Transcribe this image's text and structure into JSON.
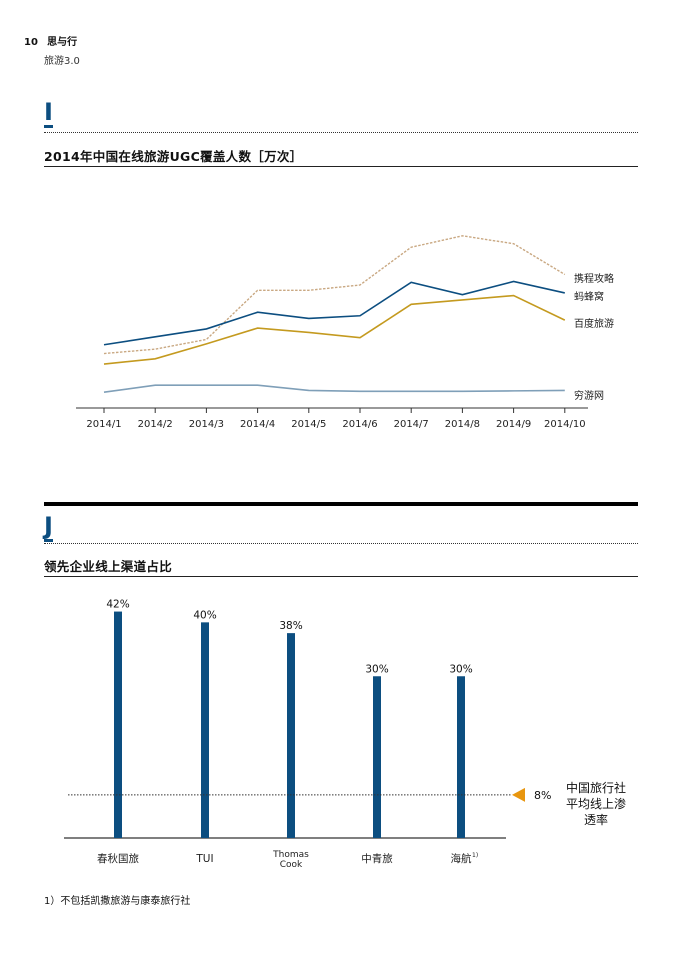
{
  "header": {
    "page_number": "10",
    "publication": "思与行",
    "subtitle": "旅游3.0"
  },
  "section_i": {
    "letter": "I"
  },
  "section_j": {
    "letter": "J"
  },
  "chart_data": [
    {
      "type": "line",
      "title": "2014年中国在线旅游UGC覆盖人数［万次］",
      "categories": [
        "2014/1",
        "2014/2",
        "2014/3",
        "2014/4",
        "2014/5",
        "2014/6",
        "2014/7",
        "2014/8",
        "2014/9",
        "2014/10"
      ],
      "series": [
        {
          "name": "携程攻略",
          "color": "#c9a882",
          "style": "dashed",
          "values": [
            1280,
            1330,
            1440,
            2000,
            2000,
            2060,
            2490,
            2620,
            2530,
            2180
          ]
        },
        {
          "name": "蚂蜂窝",
          "color": "#0c4e80",
          "style": "solid",
          "values": [
            1380,
            1470,
            1560,
            1750,
            1680,
            1710,
            2090,
            1950,
            2100,
            1970
          ]
        },
        {
          "name": "百度旅游",
          "color": "#c49a1f",
          "style": "solid",
          "values": [
            1160,
            1220,
            1390,
            1570,
            1520,
            1460,
            1840,
            1890,
            1940,
            1660
          ]
        },
        {
          "name": "穷游网",
          "color": "#7f9fb8",
          "style": "solid",
          "values": [
            840,
            920,
            920,
            920,
            860,
            850,
            850,
            850,
            855,
            860
          ]
        }
      ],
      "ylim": [
        660,
        2800
      ],
      "grid": false,
      "legend": "right, labels beside line ends"
    },
    {
      "type": "bar",
      "title": "领先企业线上渠道占比",
      "categories": [
        "春秋国旅",
        "TUI",
        "Thomas Cook",
        "中青旅",
        "海航"
      ],
      "values": [
        42,
        40,
        38,
        30,
        30
      ],
      "value_labels": [
        "42%",
        "40%",
        "38%",
        "30%",
        "30%"
      ],
      "category_superscripts": [
        "",
        "",
        "",
        "",
        "1)"
      ],
      "ylim": [
        0,
        46
      ],
      "bar_color": "#0c4e80",
      "reference_line": {
        "value": 8,
        "label": "8%",
        "marker_color": "#e8960f",
        "caption": [
          "中国旅行社",
          "平均线上渗",
          "透率"
        ]
      }
    }
  ],
  "footnote": "1）不包括凯撒旅游与康泰旅行社"
}
